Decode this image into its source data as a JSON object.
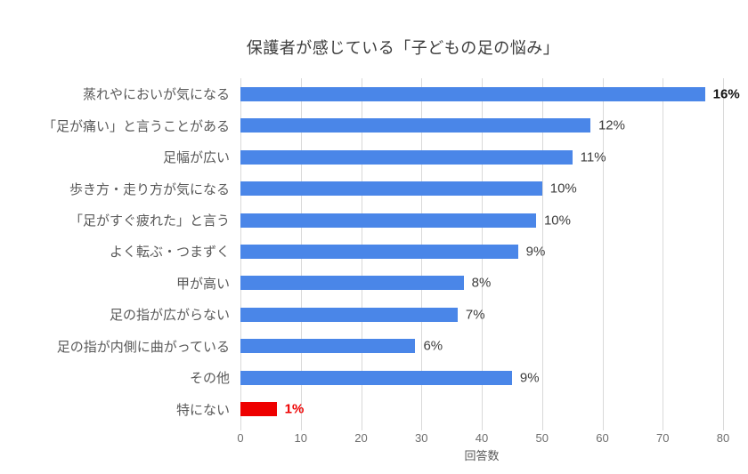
{
  "chart_data": {
    "type": "bar",
    "orientation": "horizontal",
    "title": "保護者が感じている「子どもの足の悩み」",
    "xlabel": "回答数",
    "ylabel": "",
    "xlim": [
      0,
      80
    ],
    "xticks": [
      0,
      10,
      20,
      30,
      40,
      50,
      60,
      70,
      80
    ],
    "grid": true,
    "legend": "none",
    "categories": [
      "蒸れやにおいが気になる",
      "「足が痛い」と言うことがある",
      "足幅が広い",
      "歩き方・走り方が気になる",
      "「足がすぐ疲れた」と言う",
      "よく転ぶ・つまずく",
      "甲が高い",
      "足の指が広がらない",
      "足の指が内側に曲がっている",
      "その他",
      "特にない"
    ],
    "values": [
      77,
      58,
      55,
      50,
      49,
      46,
      37,
      36,
      29,
      45,
      6
    ],
    "data_labels": [
      "16%",
      "12%",
      "11%",
      "10%",
      "10%",
      "9%",
      "8%",
      "7%",
      "6%",
      "9%",
      "1%"
    ],
    "highlight_index": 10,
    "bold_label_indices": [
      0,
      10
    ]
  },
  "colors": {
    "bar_blue": "#4a86e8",
    "bar_red": "#ee0000",
    "gridline": "#d9d9d9",
    "category_text": "#595959",
    "tick_text": "#6e6e6e",
    "data_label_text": "#3d3d3d",
    "title_text": "#3c3c3c"
  }
}
